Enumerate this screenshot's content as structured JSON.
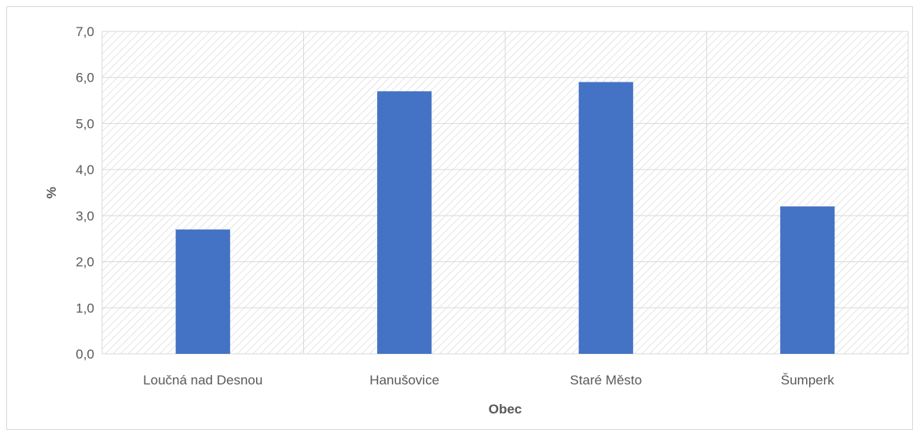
{
  "chart_data": {
    "type": "bar",
    "title": "",
    "xlabel": "Obec",
    "ylabel": "%",
    "categories": [
      "Loučná nad Desnou",
      "Hanušovice",
      "Staré Město",
      "Šumperk"
    ],
    "values": [
      2.7,
      5.7,
      5.9,
      3.2
    ],
    "ylim": [
      0,
      7
    ],
    "yticks": [
      "0,0",
      "1,0",
      "2,0",
      "3,0",
      "4,0",
      "5,0",
      "6,0",
      "7,0"
    ],
    "grid": true,
    "legend": "none",
    "bar_color": "#4472c4",
    "grid_color": "#d9d9d9",
    "hatch_color": "#dedede"
  }
}
